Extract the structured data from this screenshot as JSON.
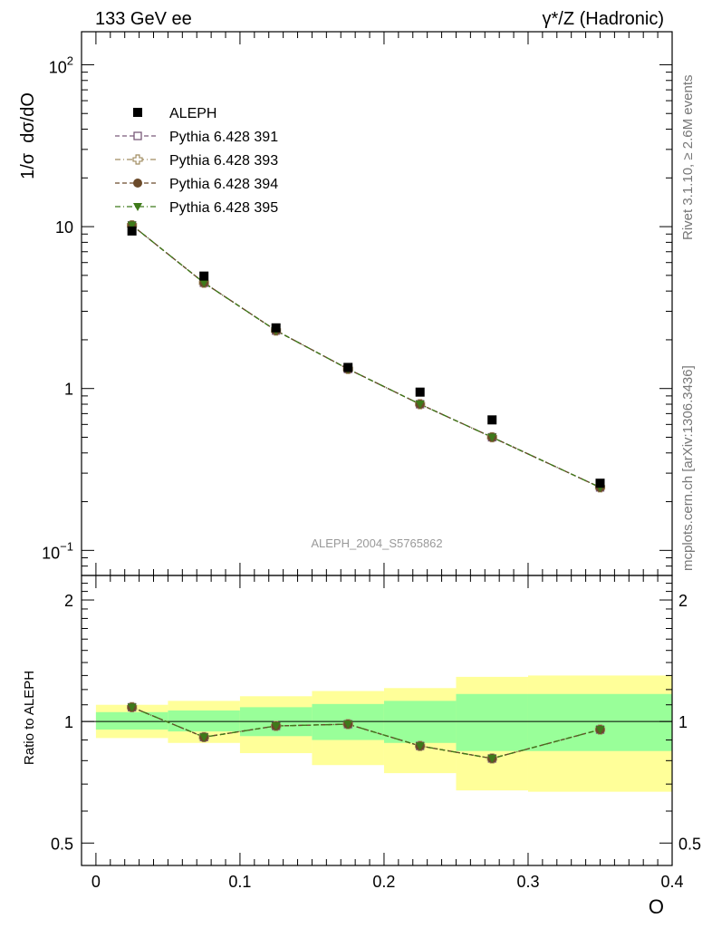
{
  "header": {
    "left_title": "133 GeV ee",
    "right_title": "γ*/Z (Hadronic)"
  },
  "side_text": {
    "rivet": "Rivet 3.1.10, ≥ 2.6M events",
    "mcplots": "mcplots.cern.ch [arXiv:1306.3436]"
  },
  "chart_data": [
    {
      "type": "scatter",
      "panel": "main",
      "ylabel": "1/σ  dσ/dO",
      "xlabel": "",
      "yscale": "log",
      "ylim": [
        0.07,
        160
      ],
      "xlim": [
        -0.01,
        0.4
      ],
      "watermark": "ALEPH_2004_S5765862",
      "legend_position": "top-left",
      "y_ticks": [
        {
          "value": 0.1,
          "label": "10",
          "exp": "−1"
        },
        {
          "value": 1,
          "label": "1",
          "exp": ""
        },
        {
          "value": 10,
          "label": "10",
          "exp": ""
        },
        {
          "value": 100,
          "label": "10",
          "exp": "2"
        }
      ],
      "x": [
        0.025,
        0.075,
        0.125,
        0.175,
        0.225,
        0.275,
        0.35
      ],
      "series": [
        {
          "name": "ALEPH",
          "marker": "filled-square",
          "color": "#000000",
          "line": "none",
          "values": [
            9.4,
            4.95,
            2.37,
            1.35,
            0.95,
            0.64,
            0.26
          ]
        },
        {
          "name": "Pythia 6.428 391",
          "marker": "open-square",
          "color": "#7a5a7a",
          "line": "dash-dot",
          "values": [
            10.2,
            4.5,
            2.28,
            1.32,
            0.8,
            0.5,
            0.245
          ]
        },
        {
          "name": "Pythia 6.428 393",
          "marker": "open-cross",
          "color": "#a08c60",
          "line": "dash-dot",
          "values": [
            10.2,
            4.5,
            2.28,
            1.32,
            0.8,
            0.5,
            0.245
          ]
        },
        {
          "name": "Pythia 6.428 394",
          "marker": "filled-circle",
          "color": "#6b4a2a",
          "line": "dash-dot",
          "values": [
            10.2,
            4.5,
            2.28,
            1.32,
            0.8,
            0.5,
            0.245
          ]
        },
        {
          "name": "Pythia 6.428 395",
          "marker": "filled-triangle-down",
          "color": "#3e7a1a",
          "line": "dash-dot",
          "values": [
            10.2,
            4.5,
            2.28,
            1.32,
            0.8,
            0.5,
            0.245
          ]
        }
      ]
    },
    {
      "type": "line",
      "panel": "ratio",
      "ylabel": "Ratio to ALEPH",
      "xlabel": "O",
      "yscale": "log",
      "ylim": [
        0.44,
        2.3
      ],
      "xlim": [
        -0.01,
        0.4
      ],
      "y_ticks": [
        {
          "value": 0.5,
          "label": "0.5"
        },
        {
          "value": 1,
          "label": "1"
        },
        {
          "value": 2,
          "label": "2"
        }
      ],
      "x_ticks": [
        {
          "value": 0,
          "label": "0"
        },
        {
          "value": 0.1,
          "label": "0.1"
        },
        {
          "value": 0.2,
          "label": "0.2"
        },
        {
          "value": 0.3,
          "label": "0.3"
        },
        {
          "value": 0.4,
          "label": "0.4"
        }
      ],
      "bins": [
        [
          0,
          0.05
        ],
        [
          0.05,
          0.1
        ],
        [
          0.1,
          0.15
        ],
        [
          0.15,
          0.2
        ],
        [
          0.2,
          0.25
        ],
        [
          0.25,
          0.3
        ],
        [
          0.3,
          0.4
        ]
      ],
      "band_yellow": [
        [
          0.91,
          1.1
        ],
        [
          0.885,
          1.125
        ],
        [
          0.835,
          1.155
        ],
        [
          0.78,
          1.19
        ],
        [
          0.745,
          1.21
        ],
        [
          0.675,
          1.29
        ],
        [
          0.67,
          1.3
        ]
      ],
      "band_green": [
        [
          0.955,
          1.055
        ],
        [
          0.945,
          1.065
        ],
        [
          0.92,
          1.085
        ],
        [
          0.9,
          1.105
        ],
        [
          0.885,
          1.125
        ],
        [
          0.845,
          1.17
        ],
        [
          0.845,
          1.17
        ]
      ],
      "x": [
        0.025,
        0.075,
        0.125,
        0.175,
        0.225,
        0.275,
        0.35
      ],
      "ratio_values": [
        1.085,
        0.915,
        0.975,
        0.985,
        0.87,
        0.81,
        0.955
      ],
      "colors": {
        "yellow_band": "#ffff99",
        "green_band": "#99ff99",
        "reference_line": "#000000"
      }
    }
  ]
}
